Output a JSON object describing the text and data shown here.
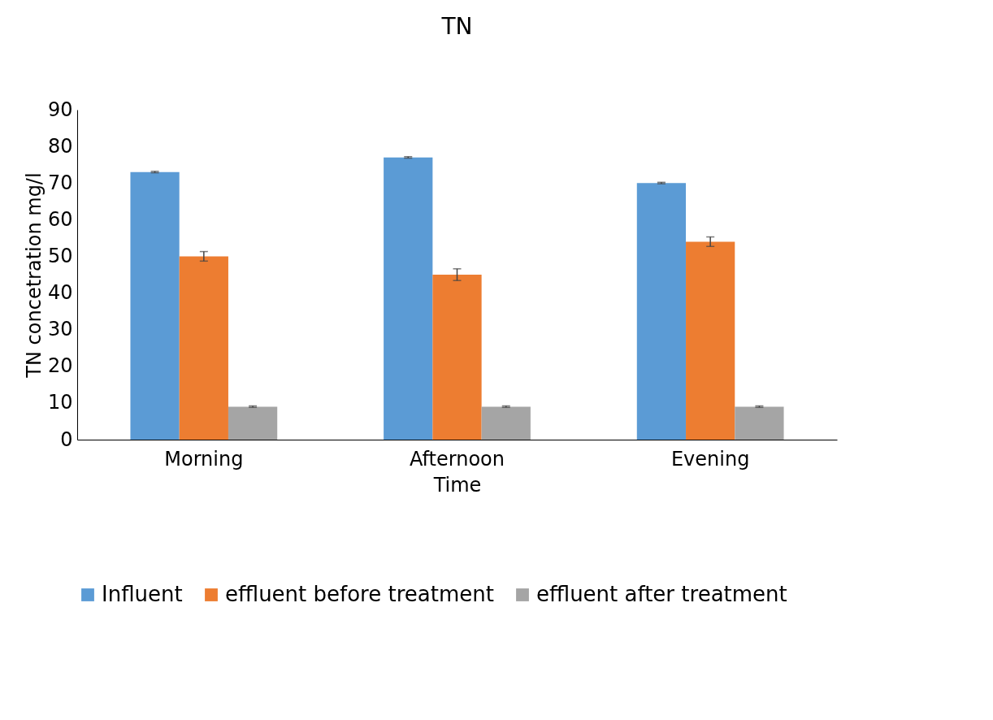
{
  "chart_data": {
    "type": "bar",
    "title": "TN",
    "xlabel": "Time",
    "ylabel": "TN concetration mg/l",
    "categories": [
      "Morning",
      "Afternoon",
      "Evening"
    ],
    "series": [
      {
        "name": "Influent",
        "color": "#5b9bd5",
        "values": [
          73,
          77,
          70
        ],
        "errors": [
          0.2,
          0.2,
          0.2
        ]
      },
      {
        "name": "effluent before treatment",
        "color": "#ed7d31",
        "values": [
          50,
          45,
          54
        ],
        "errors": [
          1.3,
          1.6,
          1.3
        ]
      },
      {
        "name": "effluent after treatment",
        "color": "#a5a5a5",
        "values": [
          9,
          9,
          9
        ],
        "errors": [
          0.2,
          0.2,
          0.2
        ]
      }
    ],
    "ylim": [
      0,
      90
    ],
    "yticks": [
      0,
      10,
      20,
      30,
      40,
      50,
      60,
      70,
      80,
      90
    ],
    "grid": false,
    "legend": "bottom"
  }
}
